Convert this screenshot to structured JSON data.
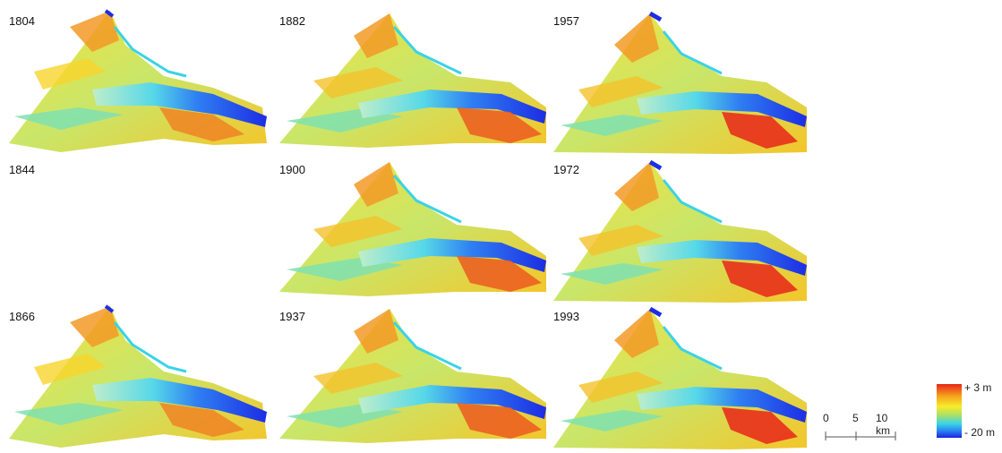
{
  "panels": [
    {
      "year": "1804"
    },
    {
      "year": "1882"
    },
    {
      "year": "1957"
    },
    {
      "year": "1844"
    },
    {
      "year": "1900"
    },
    {
      "year": "1972"
    },
    {
      "year": "1866"
    },
    {
      "year": "1937"
    },
    {
      "year": "1993"
    }
  ],
  "scale_bar": {
    "ticks": [
      "0",
      "5",
      "10 km"
    ]
  },
  "legend": {
    "top_label": "+ 3 m",
    "bottom_label": "- 20 m",
    "colors": {
      "high": "#e8261a",
      "mid": "#f7ec2a",
      "low": "#1a22e0"
    }
  }
}
